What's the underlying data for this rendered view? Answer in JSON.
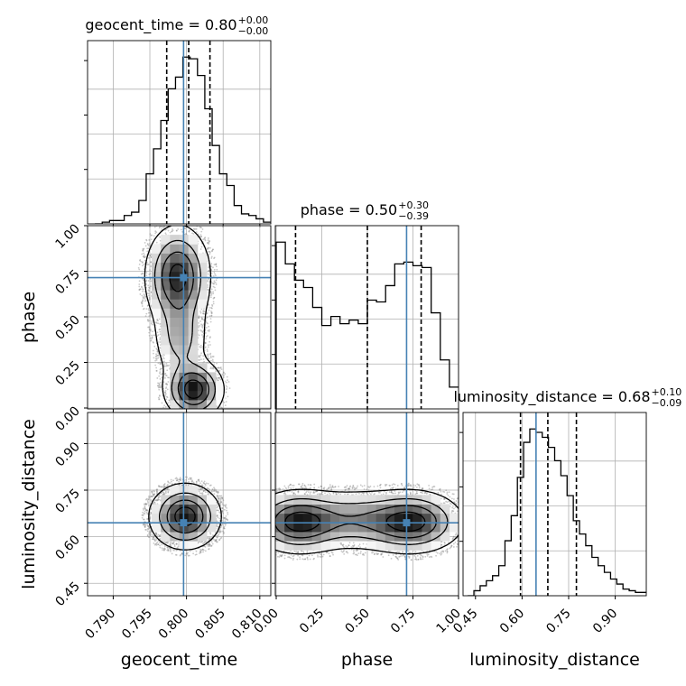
{
  "chart_data": {
    "type": "corner",
    "parameters": [
      "geocent_time",
      "phase",
      "luminosity_distance"
    ],
    "ranges": {
      "geocent_time": [
        0.7865,
        0.8115
      ],
      "phase": [
        -0.005,
        1.0
      ],
      "luminosity_distance": [
        0.41,
        1.0
      ]
    },
    "ticks": {
      "geocent_time": [
        0.79,
        0.795,
        0.8,
        0.805,
        0.81
      ],
      "phase": [
        0.0,
        0.25,
        0.5,
        0.75,
        1.0
      ],
      "luminosity_distance": [
        0.45,
        0.6,
        0.75,
        0.9
      ]
    },
    "tick_labels": {
      "geocent_time": [
        "0.790",
        "0.795",
        "0.800",
        "0.805",
        "0.810"
      ],
      "phase": [
        "0.00",
        "0.25",
        "0.50",
        "0.75",
        "1.00"
      ],
      "luminosity_distance": [
        "0.45",
        "0.60",
        "0.75",
        "0.90"
      ]
    },
    "axis_labels": {
      "geocent_time": "geocent_time",
      "phase": "phase",
      "luminosity_distance": "luminosity_distance"
    },
    "titles": [
      {
        "param": "geocent_time",
        "text": "geocent_time = 0.80",
        "plus": "+0.00",
        "minus": "−0.00"
      },
      {
        "param": "phase",
        "text": "phase = 0.50",
        "plus": "+0.30",
        "minus": "−0.39"
      },
      {
        "param": "luminosity_distance",
        "text": "luminosity_distance = 0.68",
        "plus": "+0.10",
        "minus": "−0.09"
      }
    ],
    "truths": {
      "geocent_time": 0.7996,
      "phase": 0.715,
      "luminosity_distance": 0.645
    },
    "quantiles": {
      "geocent_time": [
        0.7973,
        0.8003,
        0.8032
      ],
      "phase": [
        0.106,
        0.5,
        0.795
      ],
      "luminosity_distance": [
        0.595,
        0.683,
        0.775
      ]
    },
    "histograms": {
      "geocent_time": {
        "edges": [
          0.7875,
          0.7885,
          0.7895,
          0.7905,
          0.7915,
          0.7925,
          0.7935,
          0.7945,
          0.7955,
          0.7965,
          0.7975,
          0.7985,
          0.7995,
          0.8005,
          0.8015,
          0.8025,
          0.8035,
          0.8045,
          0.8055,
          0.8065,
          0.8075,
          0.8085,
          0.8095,
          0.8105,
          0.8115
        ],
        "counts": [
          0,
          0.01,
          0.02,
          0.02,
          0.05,
          0.07,
          0.14,
          0.3,
          0.45,
          0.62,
          0.81,
          0.88,
          1.0,
          0.99,
          0.89,
          0.69,
          0.47,
          0.3,
          0.23,
          0.11,
          0.06,
          0.05,
          0.03,
          0.01
        ]
      },
      "phase": {
        "edges": [
          0.0,
          0.05,
          0.1,
          0.15,
          0.2,
          0.25,
          0.3,
          0.35,
          0.4,
          0.45,
          0.5,
          0.55,
          0.6,
          0.65,
          0.7,
          0.75,
          0.8,
          0.85,
          0.9,
          0.95,
          1.0
        ],
        "counts": [
          0.92,
          0.8,
          0.71,
          0.67,
          0.56,
          0.46,
          0.51,
          0.47,
          0.49,
          0.47,
          0.6,
          0.59,
          0.68,
          0.8,
          0.81,
          0.79,
          0.78,
          0.53,
          0.27,
          0.12
        ]
      },
      "luminosity_distance": {
        "edges": [
          0.425,
          0.445,
          0.465,
          0.485,
          0.505,
          0.525,
          0.545,
          0.565,
          0.585,
          0.605,
          0.625,
          0.645,
          0.665,
          0.685,
          0.705,
          0.725,
          0.745,
          0.765,
          0.785,
          0.805,
          0.825,
          0.845,
          0.865,
          0.885,
          0.905,
          0.925,
          0.945,
          0.965,
          0.985,
          1.005
        ],
        "counts": [
          0.0,
          0.03,
          0.06,
          0.09,
          0.12,
          0.18,
          0.33,
          0.48,
          0.71,
          0.92,
          1.0,
          0.98,
          0.95,
          0.89,
          0.81,
          0.72,
          0.6,
          0.45,
          0.37,
          0.3,
          0.23,
          0.18,
          0.14,
          0.1,
          0.07,
          0.04,
          0.03,
          0.02,
          0.02
        ]
      }
    },
    "density_2d": [
      {
        "x": "geocent_time",
        "y": "phase",
        "blobs": [
          {
            "x": 0.7988,
            "y": 0.72,
            "sx": 0.0022,
            "sy": 0.14,
            "w": 1.0
          },
          {
            "x": 0.801,
            "y": 0.1,
            "sx": 0.002,
            "sy": 0.08,
            "w": 1.05
          },
          {
            "x": 0.7992,
            "y": 0.38,
            "sx": 0.0019,
            "sy": 0.12,
            "w": 0.45
          }
        ]
      },
      {
        "x": "geocent_time",
        "y": "luminosity_distance",
        "blobs": [
          {
            "x": 0.7998,
            "y": 0.665,
            "sx": 0.0024,
            "sy": 0.052,
            "w": 1.0
          }
        ]
      },
      {
        "x": "phase",
        "y": "luminosity_distance",
        "blobs": [
          {
            "x": 0.12,
            "y": 0.648,
            "sx": 0.13,
            "sy": 0.05,
            "w": 1.0
          },
          {
            "x": 0.74,
            "y": 0.648,
            "sx": 0.14,
            "sy": 0.05,
            "w": 1.0
          },
          {
            "x": 0.43,
            "y": 0.655,
            "sx": 0.15,
            "sy": 0.05,
            "w": 0.5
          }
        ]
      }
    ],
    "contour_levels": [
      0.12,
      0.35,
      0.6,
      0.85
    ],
    "grid": true,
    "colors": {
      "truth": "#4682b4",
      "hist": "#000000",
      "quantile": "#000000",
      "points": "#888888",
      "grid": "#b0b0b0"
    }
  }
}
